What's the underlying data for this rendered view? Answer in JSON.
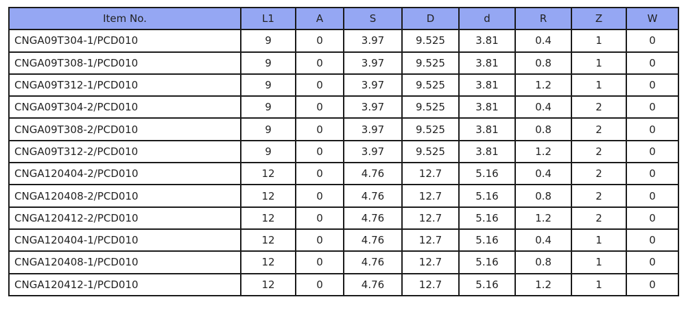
{
  "table": {
    "columns": [
      "Item No.",
      "L1",
      "A",
      "S",
      "D",
      "d",
      "R",
      "Z",
      "W"
    ],
    "rows": [
      [
        "CNGA09T304-1/PCD010",
        "9",
        "0",
        "3.97",
        "9.525",
        "3.81",
        "0.4",
        "1",
        "0"
      ],
      [
        "CNGA09T308-1/PCD010",
        "9",
        "0",
        "3.97",
        "9.525",
        "3.81",
        "0.8",
        "1",
        "0"
      ],
      [
        "CNGA09T312-1/PCD010",
        "9",
        "0",
        "3.97",
        "9.525",
        "3.81",
        "1.2",
        "1",
        "0"
      ],
      [
        "CNGA09T304-2/PCD010",
        "9",
        "0",
        "3.97",
        "9.525",
        "3.81",
        "0.4",
        "2",
        "0"
      ],
      [
        "CNGA09T308-2/PCD010",
        "9",
        "0",
        "3.97",
        "9.525",
        "3.81",
        "0.8",
        "2",
        "0"
      ],
      [
        "CNGA09T312-2/PCD010",
        "9",
        "0",
        "3.97",
        "9.525",
        "3.81",
        "1.2",
        "2",
        "0"
      ],
      [
        "CNGA120404-2/PCD010",
        "12",
        "0",
        "4.76",
        "12.7",
        "5.16",
        "0.4",
        "2",
        "0"
      ],
      [
        "CNGA120408-2/PCD010",
        "12",
        "0",
        "4.76",
        "12.7",
        "5.16",
        "0.8",
        "2",
        "0"
      ],
      [
        "CNGA120412-2/PCD010",
        "12",
        "0",
        "4.76",
        "12.7",
        "5.16",
        "1.2",
        "2",
        "0"
      ],
      [
        "CNGA120404-1/PCD010",
        "12",
        "0",
        "4.76",
        "12.7",
        "5.16",
        "0.4",
        "1",
        "0"
      ],
      [
        "CNGA120408-1/PCD010",
        "12",
        "0",
        "4.76",
        "12.7",
        "5.16",
        "0.8",
        "1",
        "0"
      ],
      [
        "CNGA120412-1/PCD010",
        "12",
        "0",
        "4.76",
        "12.7",
        "5.16",
        "1.2",
        "1",
        "0"
      ]
    ]
  }
}
